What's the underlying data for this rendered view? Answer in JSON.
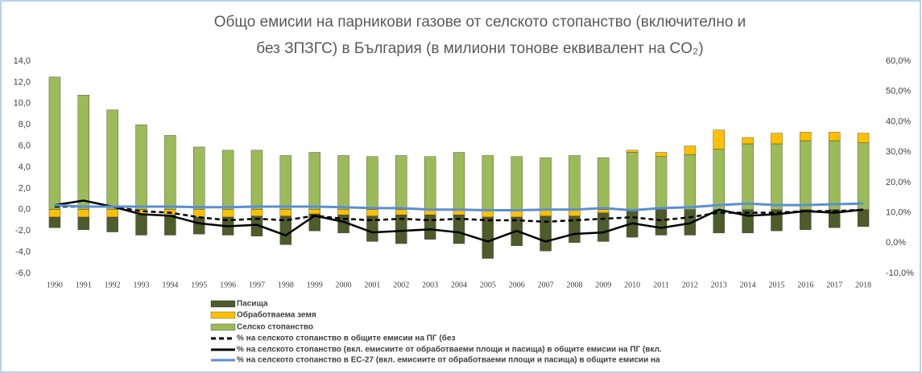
{
  "chart_data": {
    "type": "bar",
    "title": [
      "Общо емисии на парникови газове от селското стопанство (включително и",
      "без ЗПЗГС) в България (в милиони тонове еквивалент на CO₂)"
    ],
    "categories": [
      "1990",
      "1991",
      "1992",
      "1993",
      "1994",
      "1995",
      "1996",
      "1997",
      "1998",
      "1999",
      "2000",
      "2001",
      "2002",
      "2003",
      "2004",
      "2005",
      "2006",
      "2007",
      "2008",
      "2009",
      "2010",
      "2011",
      "2012",
      "2013",
      "2014",
      "2015",
      "2016",
      "2017",
      "2018"
    ],
    "series": [
      {
        "name": "Пасища",
        "type": "bar",
        "color": "#4e5b2a",
        "values": [
          -1.0,
          -1.2,
          -1.4,
          -1.9,
          -1.9,
          -1.6,
          -1.7,
          -1.9,
          -2.7,
          -1.6,
          -1.7,
          -2.4,
          -2.7,
          -2.3,
          -2.7,
          -3.9,
          -2.7,
          -3.3,
          -2.5,
          -2.7,
          -2.6,
          -2.4,
          -2.4,
          -2.2,
          -2.2,
          -2.0,
          -1.9,
          -1.7,
          -1.6
        ]
      },
      {
        "name": "Обработваема земя",
        "type": "bar",
        "color": "#ffc000",
        "values": [
          -0.7,
          -0.7,
          -0.7,
          -0.5,
          -0.5,
          -0.7,
          -0.7,
          -0.6,
          -0.6,
          -0.4,
          -0.5,
          -0.6,
          -0.5,
          -0.5,
          -0.5,
          -0.7,
          -0.7,
          -0.6,
          -0.6,
          -0.3,
          0.2,
          0.4,
          0.8,
          1.8,
          0.6,
          1.0,
          0.8,
          0.8,
          0.9
        ]
      },
      {
        "name": "Селско стопанство",
        "type": "bar",
        "color": "#9bbb59",
        "values": [
          12.5,
          10.8,
          9.4,
          8.0,
          7.0,
          5.9,
          5.6,
          5.6,
          5.1,
          5.4,
          5.1,
          5.0,
          5.1,
          5.0,
          5.4,
          5.1,
          5.0,
          4.9,
          5.1,
          4.9,
          5.4,
          5.0,
          5.2,
          5.7,
          6.2,
          6.2,
          6.5,
          6.5,
          6.3
        ]
      },
      {
        "name": "% на селското стопанство в общите емисии на ПГ (без",
        "type": "line",
        "axis": "y2",
        "dashed": true,
        "color": "#000000",
        "values": [
          12,
          12,
          12,
          10.5,
          10,
          8.5,
          7.5,
          8,
          7.5,
          9,
          8,
          7.5,
          8,
          7.5,
          8,
          7.5,
          7.5,
          7,
          7.5,
          8,
          8.5,
          7.5,
          8.5,
          10,
          10,
          10,
          10.5,
          10.5,
          11
        ]
      },
      {
        "name": "% на селското стопанство (вкл. емисиите от обработваеми площи и пасища) в общите емисии на ПГ (вкл.",
        "type": "line",
        "axis": "y2",
        "dashed": false,
        "color": "#000000",
        "values": [
          12.5,
          14,
          12,
          9.5,
          9,
          6.5,
          5.5,
          6,
          2.5,
          9,
          7,
          3.5,
          4,
          4.5,
          3.5,
          0.5,
          4,
          0.5,
          3,
          3.5,
          6.5,
          5,
          6.5,
          11,
          9,
          9.5,
          10.5,
          10,
          11
        ]
      },
      {
        "name": "% на селското стопанство в ЕС-27 (вкл. емисиите от обработваеми площи и пасища) в общите емисии на",
        "type": "line",
        "axis": "y2",
        "dashed": false,
        "color": "#5b8fcf",
        "values": [
          12.5,
          12,
          12,
          12,
          12,
          11.8,
          11.8,
          12,
          12,
          12,
          11.8,
          11.5,
          11.5,
          11,
          11,
          10.8,
          10.8,
          11,
          11,
          11.5,
          10.8,
          11.5,
          11.8,
          12.5,
          13,
          12.5,
          12.5,
          12.8,
          13
        ]
      }
    ],
    "ylim": [
      -6,
      14
    ],
    "yticks": [
      {
        "value": -6,
        "label": "-6,0"
      },
      {
        "value": -4,
        "label": "-4,0"
      },
      {
        "value": -2,
        "label": "-2,0"
      },
      {
        "value": 0,
        "label": "0,0"
      },
      {
        "value": 2,
        "label": "2,0"
      },
      {
        "value": 4,
        "label": "4,0"
      },
      {
        "value": 6,
        "label": "6,0"
      },
      {
        "value": 8,
        "label": "8,0"
      },
      {
        "value": 10,
        "label": "10,0"
      },
      {
        "value": 12,
        "label": "12,0"
      },
      {
        "value": 14,
        "label": "14,0"
      }
    ],
    "y2lim": [
      -10,
      60
    ],
    "y2ticks": [
      {
        "value": -10,
        "label": "-10,0%"
      },
      {
        "value": 0,
        "label": "0,0%"
      },
      {
        "value": 10,
        "label": "10,0%"
      },
      {
        "value": 20,
        "label": "20,0%"
      },
      {
        "value": 30,
        "label": "30,0%"
      },
      {
        "value": 40,
        "label": "40,0%"
      },
      {
        "value": 50,
        "label": "50,0%"
      },
      {
        "value": 60,
        "label": "60,0%"
      }
    ],
    "grid": false
  }
}
